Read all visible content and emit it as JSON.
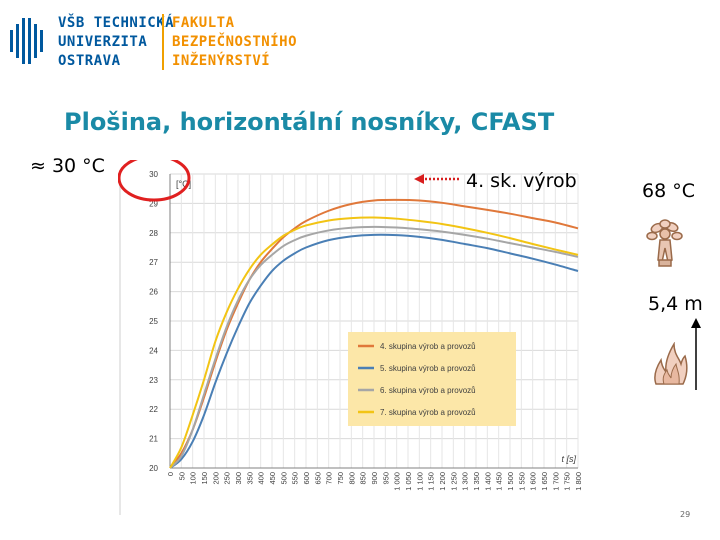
{
  "header": {
    "school_lines": [
      "VŠB TECHNICKÁ",
      "UNIVERZITA",
      "OSTRAVA"
    ],
    "faculty_lines": [
      "FAKULTA",
      "BEZPEČNOSTNÍHO",
      "INŽENÝRSTVÍ"
    ],
    "colors": {
      "school": "#00589e",
      "faculty": "#f29000"
    }
  },
  "slide": {
    "title": "Plošina, horizontální nosníky, CFAST",
    "approx_label": "≈ 30 °C",
    "arrow_label": "4. sk. výrob",
    "temperature_label": "68 °C",
    "height_label": "5,4 m",
    "page_number": "29",
    "icons": [
      "sprinkler-icon",
      "flame-icon",
      "up-arrow-icon"
    ],
    "highlight_color": "#e02020",
    "arrow_color": "#d81e1e"
  },
  "chart_data": {
    "type": "line",
    "ylabel": "[°C]",
    "xlabel": "t [s]",
    "xlim": [
      0,
      1800
    ],
    "ylim": [
      20,
      30
    ],
    "x_ticks": [
      0,
      50,
      100,
      150,
      200,
      250,
      300,
      350,
      400,
      450,
      500,
      550,
      600,
      650,
      700,
      750,
      800,
      850,
      900,
      950,
      1000,
      1050,
      1100,
      1150,
      1200,
      1250,
      1300,
      1350,
      1400,
      1450,
      1500,
      1550,
      1600,
      1650,
      1700,
      1750,
      1800
    ],
    "x_tick_labels": [
      "0",
      "50",
      "100",
      "150",
      "200",
      "250",
      "300",
      "350",
      "400",
      "450",
      "500",
      "550",
      "600",
      "650",
      "700",
      "750",
      "800",
      "850",
      "900",
      "950",
      "1 000",
      "1 050",
      "1 100",
      "1 150",
      "1 200",
      "1 250",
      "1 300",
      "1 350",
      "1 400",
      "1 450",
      "1 500",
      "1 550",
      "1 600",
      "1 650",
      "1 700",
      "1 750",
      "1 800"
    ],
    "y_ticks": [
      20,
      21,
      22,
      23,
      24,
      25,
      26,
      27,
      28,
      29,
      30
    ],
    "grid": true,
    "legend_position": "center-right",
    "legend_background": "#fce7a8",
    "series": [
      {
        "name": "4. skupina výrob a provozů",
        "color": "#e0783a",
        "x": [
          0,
          50,
          100,
          150,
          200,
          250,
          300,
          350,
          400,
          450,
          500,
          550,
          600,
          700,
          800,
          900,
          1000,
          1100,
          1200,
          1300,
          1400,
          1500,
          1600,
          1700,
          1800
        ],
        "y": [
          20,
          20.5,
          21.3,
          22.4,
          23.6,
          24.7,
          25.6,
          26.4,
          27,
          27.45,
          27.85,
          28.15,
          28.4,
          28.75,
          28.98,
          29.1,
          29.12,
          29.1,
          29.02,
          28.9,
          28.78,
          28.65,
          28.5,
          28.35,
          28.15
        ]
      },
      {
        "name": "5. skupina výrob a provozů",
        "color": "#4a7fb5",
        "x": [
          0,
          50,
          100,
          150,
          200,
          250,
          300,
          350,
          400,
          450,
          500,
          550,
          600,
          700,
          800,
          900,
          1000,
          1100,
          1200,
          1300,
          1400,
          1500,
          1600,
          1700,
          1800
        ],
        "y": [
          20,
          20.3,
          20.9,
          21.8,
          22.9,
          23.9,
          24.8,
          25.6,
          26.2,
          26.7,
          27.05,
          27.3,
          27.5,
          27.75,
          27.88,
          27.93,
          27.92,
          27.86,
          27.76,
          27.62,
          27.48,
          27.3,
          27.12,
          26.92,
          26.7
        ]
      },
      {
        "name": "6. skupina výrob a provozů",
        "color": "#a6a6a6",
        "x": [
          0,
          50,
          100,
          150,
          200,
          250,
          300,
          350,
          400,
          450,
          500,
          550,
          600,
          700,
          800,
          900,
          1000,
          1100,
          1200,
          1300,
          1400,
          1500,
          1600,
          1700,
          1800
        ],
        "y": [
          20,
          20.4,
          21.3,
          22.5,
          23.7,
          24.8,
          25.7,
          26.4,
          26.9,
          27.25,
          27.55,
          27.75,
          27.9,
          28.08,
          28.17,
          28.2,
          28.18,
          28.12,
          28.04,
          27.93,
          27.8,
          27.65,
          27.5,
          27.35,
          27.18
        ]
      },
      {
        "name": "7. skupina výrob a provozů",
        "color": "#f2c414",
        "x": [
          0,
          50,
          100,
          150,
          200,
          250,
          300,
          350,
          400,
          450,
          500,
          550,
          600,
          700,
          800,
          900,
          1000,
          1100,
          1200,
          1300,
          1400,
          1500,
          1600,
          1700,
          1800
        ],
        "y": [
          20,
          20.7,
          21.8,
          23,
          24.3,
          25.3,
          26.1,
          26.75,
          27.25,
          27.6,
          27.9,
          28.1,
          28.25,
          28.42,
          28.5,
          28.52,
          28.48,
          28.4,
          28.3,
          28.16,
          28.0,
          27.82,
          27.62,
          27.43,
          27.25
        ]
      }
    ]
  }
}
